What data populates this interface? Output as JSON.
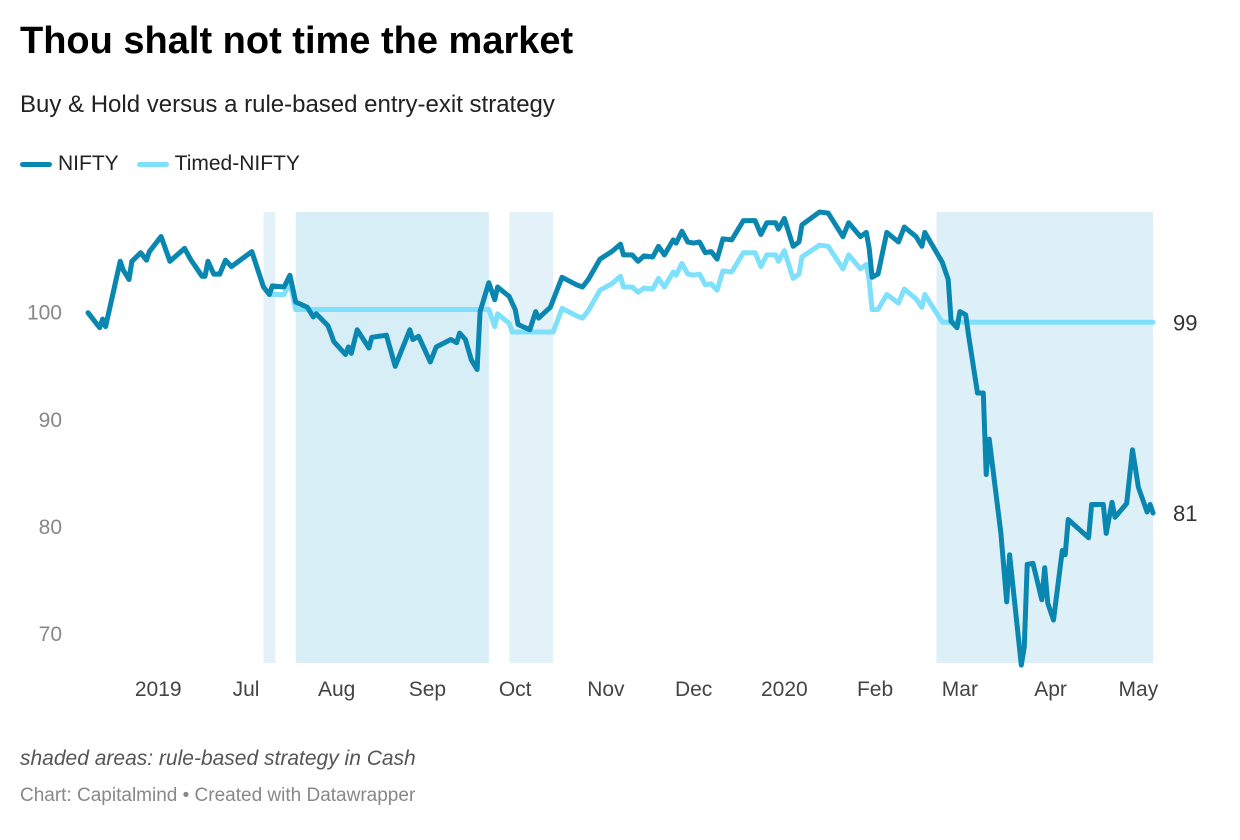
{
  "header": {
    "title": "Thou shalt not time the market",
    "subtitle": "Buy & Hold versus a rule-based entry-exit strategy"
  },
  "footer": {
    "notes": "shaded areas: rule-based strategy in Cash",
    "source": "Chart: Capitalmind • Created with Datawrapper"
  },
  "chart_data": {
    "type": "line",
    "title": "Thou shalt not time the market",
    "subtitle": "Buy & Hold versus a rule-based entry-exit strategy",
    "legend_position": "top-left",
    "grid": false,
    "ylim": [
      67.3,
      109.4
    ],
    "xlim": [
      "2019-05-08",
      "2020-05-06"
    ],
    "y_ticks": [
      100,
      90,
      80,
      70
    ],
    "x_ticks": [
      {
        "date": "2019-06-01",
        "label": "2019"
      },
      {
        "date": "2019-07-01",
        "label": "Jul"
      },
      {
        "date": "2019-08-01",
        "label": "Aug"
      },
      {
        "date": "2019-09-01",
        "label": "Sep"
      },
      {
        "date": "2019-10-01",
        "label": "Oct"
      },
      {
        "date": "2019-11-01",
        "label": "Nov"
      },
      {
        "date": "2019-12-01",
        "label": "Dec"
      },
      {
        "date": "2020-01-01",
        "label": "2020"
      },
      {
        "date": "2020-02-01",
        "label": "Feb"
      },
      {
        "date": "2020-03-01",
        "label": "Mar"
      },
      {
        "date": "2020-04-01",
        "label": "Apr"
      },
      {
        "date": "2020-05-01",
        "label": "May"
      }
    ],
    "cash_periods": [
      [
        "2019-07-07",
        "2019-07-11"
      ],
      [
        "2019-07-18",
        "2019-09-22"
      ],
      [
        "2019-09-29",
        "2019-10-14"
      ],
      [
        "2020-02-22",
        "2020-05-06"
      ]
    ],
    "series": [
      {
        "name": "NIFTY",
        "color": "#0a87b0",
        "end_label": "81",
        "points": [
          [
            "2019-05-08",
            100
          ],
          [
            "2019-05-12",
            98.6
          ],
          [
            "2019-05-13",
            99.4
          ],
          [
            "2019-05-14",
            98.7
          ],
          [
            "2019-05-19",
            104.8
          ],
          [
            "2019-05-20",
            104
          ],
          [
            "2019-05-22",
            103.1
          ],
          [
            "2019-05-23",
            104.8
          ],
          [
            "2019-05-26",
            105.6
          ],
          [
            "2019-05-28",
            104.9
          ],
          [
            "2019-05-29",
            105.7
          ],
          [
            "2019-06-02",
            107.1
          ],
          [
            "2019-06-05",
            104.8
          ],
          [
            "2019-06-10",
            106
          ],
          [
            "2019-06-12",
            105
          ],
          [
            "2019-06-16",
            103.4
          ],
          [
            "2019-06-17",
            103.4
          ],
          [
            "2019-06-18",
            104.8
          ],
          [
            "2019-06-20",
            103.6
          ],
          [
            "2019-06-22",
            103.6
          ],
          [
            "2019-06-24",
            104.9
          ],
          [
            "2019-06-26",
            104.3
          ],
          [
            "2019-07-03",
            105.7
          ],
          [
            "2019-07-07",
            102.4
          ],
          [
            "2019-07-09",
            101.7
          ],
          [
            "2019-07-10",
            102.5
          ],
          [
            "2019-07-14",
            102.4
          ],
          [
            "2019-07-16",
            103.5
          ],
          [
            "2019-07-18",
            101
          ],
          [
            "2019-07-22",
            100.5
          ],
          [
            "2019-07-24",
            99.6
          ],
          [
            "2019-07-25",
            99.9
          ],
          [
            "2019-07-29",
            98.8
          ],
          [
            "2019-07-30",
            98.1
          ],
          [
            "2019-07-31",
            97.3
          ],
          [
            "2019-08-04",
            96.1
          ],
          [
            "2019-08-05",
            96.8
          ],
          [
            "2019-08-06",
            96.2
          ],
          [
            "2019-08-08",
            98.4
          ],
          [
            "2019-08-12",
            96.7
          ],
          [
            "2019-08-13",
            97.7
          ],
          [
            "2019-08-18",
            97.9
          ],
          [
            "2019-08-21",
            95
          ],
          [
            "2019-08-26",
            98.4
          ],
          [
            "2019-08-27",
            97.5
          ],
          [
            "2019-08-29",
            97.8
          ],
          [
            "2019-09-02",
            95.4
          ],
          [
            "2019-09-04",
            96.8
          ],
          [
            "2019-09-09",
            97.5
          ],
          [
            "2019-09-11",
            97.2
          ],
          [
            "2019-09-12",
            98.1
          ],
          [
            "2019-09-14",
            97.5
          ],
          [
            "2019-09-16",
            95.6
          ],
          [
            "2019-09-18",
            94.7
          ],
          [
            "2019-09-19",
            100.1
          ],
          [
            "2019-09-22",
            102.8
          ],
          [
            "2019-09-24",
            101.2
          ],
          [
            "2019-09-25",
            102.4
          ],
          [
            "2019-09-29",
            101.5
          ],
          [
            "2019-09-30",
            100.9
          ],
          [
            "2019-10-01",
            100.3
          ],
          [
            "2019-10-02",
            98.9
          ],
          [
            "2019-10-06",
            98.4
          ],
          [
            "2019-10-08",
            100.1
          ],
          [
            "2019-10-09",
            99.5
          ],
          [
            "2019-10-13",
            100.5
          ],
          [
            "2019-10-17",
            103.3
          ],
          [
            "2019-10-22",
            102.6
          ],
          [
            "2019-10-24",
            102.4
          ],
          [
            "2019-10-26",
            103.1
          ],
          [
            "2019-10-30",
            105
          ],
          [
            "2019-11-03",
            105.7
          ],
          [
            "2019-11-06",
            106.4
          ],
          [
            "2019-11-07",
            105.4
          ],
          [
            "2019-11-10",
            105.4
          ],
          [
            "2019-11-12",
            104.8
          ],
          [
            "2019-11-14",
            105.3
          ],
          [
            "2019-11-17",
            105.2
          ],
          [
            "2019-11-19",
            106.2
          ],
          [
            "2019-11-21",
            105.4
          ],
          [
            "2019-11-24",
            106.8
          ],
          [
            "2019-11-25",
            106.5
          ],
          [
            "2019-11-27",
            107.6
          ],
          [
            "2019-11-29",
            106.6
          ],
          [
            "2019-12-01",
            106.5
          ],
          [
            "2019-12-03",
            106.6
          ],
          [
            "2019-12-05",
            105.6
          ],
          [
            "2019-12-07",
            105.7
          ],
          [
            "2019-12-09",
            105
          ],
          [
            "2019-12-11",
            106.9
          ],
          [
            "2019-12-14",
            106.8
          ],
          [
            "2019-12-18",
            108.6
          ],
          [
            "2019-12-22",
            108.6
          ],
          [
            "2019-12-24",
            107.3
          ],
          [
            "2019-12-26",
            108.4
          ],
          [
            "2019-12-29",
            108.4
          ],
          [
            "2019-12-30",
            107.8
          ],
          [
            "2020-01-01",
            108.8
          ],
          [
            "2020-01-04",
            106.2
          ],
          [
            "2020-01-06",
            106.6
          ],
          [
            "2020-01-07",
            108.2
          ],
          [
            "2020-01-13",
            109.4
          ],
          [
            "2020-01-16",
            109.3
          ],
          [
            "2020-01-21",
            107.1
          ],
          [
            "2020-01-23",
            108.4
          ],
          [
            "2020-01-27",
            107.1
          ],
          [
            "2020-01-29",
            107.5
          ],
          [
            "2020-01-30",
            106
          ],
          [
            "2020-01-31",
            103.3
          ],
          [
            "2020-02-02",
            103.6
          ],
          [
            "2020-02-05",
            107.5
          ],
          [
            "2020-02-09",
            106.6
          ],
          [
            "2020-02-11",
            108
          ],
          [
            "2020-02-15",
            107.1
          ],
          [
            "2020-02-17",
            106.2
          ],
          [
            "2020-02-18",
            107.5
          ],
          [
            "2020-02-24",
            104.7
          ],
          [
            "2020-02-26",
            103.1
          ],
          [
            "2020-02-27",
            99.2
          ],
          [
            "2020-02-29",
            98.6
          ],
          [
            "2020-03-01",
            100.1
          ],
          [
            "2020-03-03",
            99.8
          ],
          [
            "2020-03-04",
            97.8
          ],
          [
            "2020-03-07",
            92.5
          ],
          [
            "2020-03-09",
            92.5
          ],
          [
            "2020-03-10",
            84.9
          ],
          [
            "2020-03-11",
            88.2
          ],
          [
            "2020-03-15",
            79.4
          ],
          [
            "2020-03-17",
            73
          ],
          [
            "2020-03-18",
            77.4
          ],
          [
            "2020-03-22",
            67.1
          ],
          [
            "2020-03-23",
            68.8
          ],
          [
            "2020-03-24",
            76.5
          ],
          [
            "2020-03-26",
            76.6
          ],
          [
            "2020-03-29",
            73.2
          ],
          [
            "2020-03-30",
            76.2
          ],
          [
            "2020-03-31",
            72.9
          ],
          [
            "2020-04-02",
            71.3
          ],
          [
            "2020-04-05",
            77.8
          ],
          [
            "2020-04-06",
            77.4
          ],
          [
            "2020-04-07",
            80.7
          ],
          [
            "2020-04-14",
            79
          ],
          [
            "2020-04-15",
            82.1
          ],
          [
            "2020-04-19",
            82.1
          ],
          [
            "2020-04-20",
            79.4
          ],
          [
            "2020-04-22",
            82.3
          ],
          [
            "2020-04-23",
            80.9
          ],
          [
            "2020-04-27",
            82.2
          ],
          [
            "2020-04-29",
            87.2
          ],
          [
            "2020-05-01",
            83.7
          ],
          [
            "2020-05-04",
            81.4
          ],
          [
            "2020-05-05",
            82.1
          ],
          [
            "2020-05-06",
            81.3
          ]
        ]
      },
      {
        "name": "Timed-NIFTY",
        "color": "#7ee0fb",
        "end_label": "99",
        "points": [
          [
            "2019-05-08",
            100
          ],
          [
            "2019-05-12",
            98.6
          ],
          [
            "2019-05-13",
            99.4
          ],
          [
            "2019-05-14",
            98.7
          ],
          [
            "2019-05-19",
            104.8
          ],
          [
            "2019-05-20",
            104
          ],
          [
            "2019-05-22",
            103.1
          ],
          [
            "2019-05-23",
            104.8
          ],
          [
            "2019-05-26",
            105.6
          ],
          [
            "2019-05-28",
            104.9
          ],
          [
            "2019-05-29",
            105.7
          ],
          [
            "2019-06-02",
            107.1
          ],
          [
            "2019-06-05",
            104.8
          ],
          [
            "2019-06-10",
            106
          ],
          [
            "2019-06-12",
            105
          ],
          [
            "2019-06-16",
            103.4
          ],
          [
            "2019-06-17",
            103.4
          ],
          [
            "2019-06-18",
            104.8
          ],
          [
            "2019-06-20",
            103.6
          ],
          [
            "2019-06-22",
            103.6
          ],
          [
            "2019-06-24",
            104.9
          ],
          [
            "2019-06-26",
            104.3
          ],
          [
            "2019-07-03",
            105.7
          ],
          [
            "2019-07-07",
            102.4
          ],
          [
            "2019-07-09",
            101.7
          ],
          [
            "2019-07-10",
            101.7
          ],
          [
            "2019-07-14",
            101.7
          ],
          [
            "2019-07-16",
            102.8
          ],
          [
            "2019-07-18",
            100.3
          ],
          [
            "2019-09-22",
            100.3
          ],
          [
            "2019-09-24",
            98.7
          ],
          [
            "2019-09-25",
            99.9
          ],
          [
            "2019-09-29",
            99.0
          ],
          [
            "2019-09-30",
            98.2
          ],
          [
            "2019-10-14",
            98.2
          ],
          [
            "2019-10-17",
            100.4
          ],
          [
            "2019-10-22",
            99.7
          ],
          [
            "2019-10-24",
            99.5
          ],
          [
            "2019-10-26",
            100.2
          ],
          [
            "2019-10-30",
            102.1
          ],
          [
            "2019-11-03",
            102.7
          ],
          [
            "2019-11-06",
            103.4
          ],
          [
            "2019-11-07",
            102.4
          ],
          [
            "2019-11-10",
            102.4
          ],
          [
            "2019-11-12",
            101.9
          ],
          [
            "2019-11-14",
            102.3
          ],
          [
            "2019-11-17",
            102.2
          ],
          [
            "2019-11-19",
            103.2
          ],
          [
            "2019-11-21",
            102.4
          ],
          [
            "2019-11-24",
            103.8
          ],
          [
            "2019-11-25",
            103.5
          ],
          [
            "2019-11-27",
            104.6
          ],
          [
            "2019-11-29",
            103.6
          ],
          [
            "2019-12-01",
            103.5
          ],
          [
            "2019-12-03",
            103.6
          ],
          [
            "2019-12-05",
            102.6
          ],
          [
            "2019-12-07",
            102.7
          ],
          [
            "2019-12-09",
            102.1
          ],
          [
            "2019-12-11",
            103.9
          ],
          [
            "2019-12-14",
            103.8
          ],
          [
            "2019-12-18",
            105.6
          ],
          [
            "2019-12-22",
            105.6
          ],
          [
            "2019-12-24",
            104.3
          ],
          [
            "2019-12-26",
            105.4
          ],
          [
            "2019-12-29",
            105.4
          ],
          [
            "2019-12-30",
            104.8
          ],
          [
            "2020-01-01",
            105.8
          ],
          [
            "2020-01-04",
            103.2
          ],
          [
            "2020-01-06",
            103.6
          ],
          [
            "2020-01-07",
            105.2
          ],
          [
            "2020-01-13",
            106.3
          ],
          [
            "2020-01-16",
            106.2
          ],
          [
            "2020-01-21",
            104.1
          ],
          [
            "2020-01-23",
            105.4
          ],
          [
            "2020-01-27",
            104.1
          ],
          [
            "2020-01-29",
            104.5
          ],
          [
            "2020-01-30",
            103.0
          ],
          [
            "2020-01-31",
            100.3
          ],
          [
            "2020-02-02",
            100.3
          ],
          [
            "2020-02-05",
            101.7
          ],
          [
            "2020-02-09",
            100.9
          ],
          [
            "2020-02-11",
            102.2
          ],
          [
            "2020-02-15",
            101.3
          ],
          [
            "2020-02-17",
            100.5
          ],
          [
            "2020-02-18",
            101.7
          ],
          [
            "2020-02-24",
            99.1
          ],
          [
            "2020-05-06",
            99.1
          ]
        ]
      }
    ]
  }
}
